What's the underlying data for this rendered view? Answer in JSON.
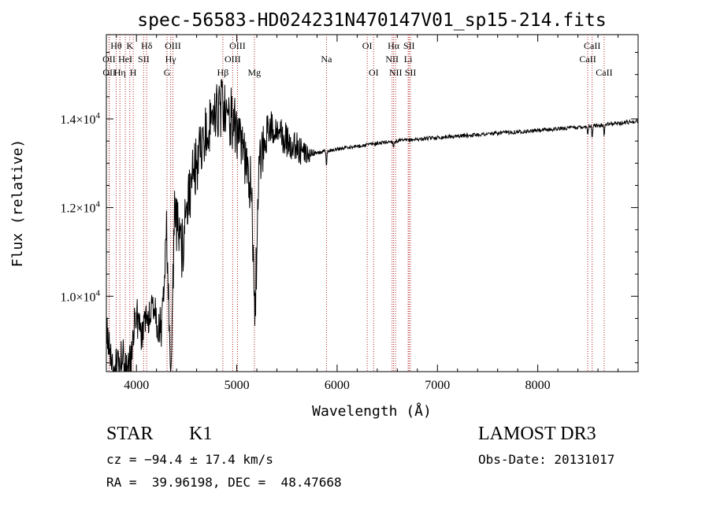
{
  "chart_data": {
    "type": "line",
    "title": "spec-56583-HD024231N470147V01_sp15-214.fits",
    "xlabel": "Wavelength (Å)",
    "ylabel": "Flux (relative)",
    "xlim": [
      3700,
      9000
    ],
    "ylim": [
      8300,
      15900
    ],
    "x_ticks": [
      {
        "value": 4000,
        "label": "4000"
      },
      {
        "value": 5000,
        "label": "5000"
      },
      {
        "value": 6000,
        "label": "6000"
      },
      {
        "value": 7000,
        "label": "7000"
      },
      {
        "value": 8000,
        "label": "8000"
      }
    ],
    "x_minor_step": 200,
    "y_ticks": [
      {
        "value": 10000,
        "mantissa": "1.0",
        "exponent": "4"
      },
      {
        "value": 12000,
        "mantissa": "1.2",
        "exponent": "4"
      },
      {
        "value": 14000,
        "mantissa": "1.4",
        "exponent": "4"
      }
    ],
    "y_minor_step": 500,
    "lines": [
      {
        "name": "Hθ",
        "x": 3798,
        "row": 0
      },
      {
        "name": "OII",
        "x": 3727,
        "row": 1
      },
      {
        "name": "OII",
        "x": 3729,
        "row": 2
      },
      {
        "name": "HeI",
        "x": 3889,
        "row": 1
      },
      {
        "name": "Hη",
        "x": 3835,
        "row": 2
      },
      {
        "name": "K",
        "x": 3934,
        "row": 0
      },
      {
        "name": "H",
        "x": 3968,
        "row": 2
      },
      {
        "name": "Hδ",
        "x": 4102,
        "row": 0
      },
      {
        "name": "SII",
        "x": 4072,
        "row": 1
      },
      {
        "name": "OIII",
        "x": 4363,
        "row": 0
      },
      {
        "name": "Hγ",
        "x": 4341,
        "row": 1
      },
      {
        "name": "G",
        "x": 4305,
        "row": 2
      },
      {
        "name": "OIII",
        "x": 5007,
        "row": 0
      },
      {
        "name": "OIII",
        "x": 4959,
        "row": 1
      },
      {
        "name": "Hβ",
        "x": 4861,
        "row": 2
      },
      {
        "name": "Mg",
        "x": 5175,
        "row": 2
      },
      {
        "name": "Na",
        "x": 5894,
        "row": 1
      },
      {
        "name": "OI",
        "x": 6300,
        "row": 0
      },
      {
        "name": "OI",
        "x": 6364,
        "row": 2
      },
      {
        "name": "Hα",
        "x": 6563,
        "row": 0
      },
      {
        "name": "SII",
        "x": 6717,
        "row": 0
      },
      {
        "name": "NII",
        "x": 6548,
        "row": 1
      },
      {
        "name": "Li",
        "x": 6708,
        "row": 1
      },
      {
        "name": "NII",
        "x": 6583,
        "row": 2
      },
      {
        "name": "SII",
        "x": 6731,
        "row": 2
      },
      {
        "name": "CaII",
        "x": 8542,
        "row": 0
      },
      {
        "name": "CaII",
        "x": 8498,
        "row": 1
      },
      {
        "name": "CaII",
        "x": 8662,
        "row": 2
      }
    ],
    "spectrum_anchors": [
      [
        3700,
        9400
      ],
      [
        3760,
        8300
      ],
      [
        3800,
        8400
      ],
      [
        3860,
        8650
      ],
      [
        3900,
        8400
      ],
      [
        3950,
        8500
      ],
      [
        3990,
        9700
      ],
      [
        4050,
        9000
      ],
      [
        4150,
        9800
      ],
      [
        4250,
        9200
      ],
      [
        4300,
        11500
      ],
      [
        4340,
        8400
      ],
      [
        4380,
        11800
      ],
      [
        4450,
        11000
      ],
      [
        4550,
        12600
      ],
      [
        4650,
        13300
      ],
      [
        4750,
        14000
      ],
      [
        4850,
        14200
      ],
      [
        4950,
        14000
      ],
      [
        5050,
        13300
      ],
      [
        5150,
        12500
      ],
      [
        5180,
        9300
      ],
      [
        5220,
        13000
      ],
      [
        5300,
        13700
      ],
      [
        5400,
        13800
      ],
      [
        5500,
        13500
      ],
      [
        5600,
        13300
      ],
      [
        5700,
        13200
      ],
      [
        5800,
        13230
      ],
      [
        6000,
        13320
      ],
      [
        6500,
        13480
      ],
      [
        7000,
        13580
      ],
      [
        7500,
        13660
      ],
      [
        8000,
        13740
      ],
      [
        8500,
        13830
      ],
      [
        9000,
        13950
      ]
    ],
    "noise_profile": [
      [
        3700,
        400
      ],
      [
        4300,
        500
      ],
      [
        4400,
        700
      ],
      [
        5200,
        700
      ],
      [
        5300,
        450
      ],
      [
        5600,
        400
      ],
      [
        5750,
        120
      ],
      [
        5800,
        40
      ],
      [
        9000,
        45
      ]
    ],
    "absorption_features": [
      {
        "x": 5175,
        "depth": 220
      },
      {
        "x": 5894,
        "depth": 300
      },
      {
        "x": 6563,
        "depth": 120
      },
      {
        "x": 8498,
        "depth": 150
      },
      {
        "x": 8542,
        "depth": 300
      },
      {
        "x": 8662,
        "depth": 250
      }
    ]
  },
  "info": {
    "object_class": "STAR",
    "subclass": "K1",
    "survey": "LAMOST DR3",
    "redshift": "cz = −94.4 ± 17.4 km/s",
    "obs_date": "Obs-Date: 20131017",
    "coords": "RA =  39.96198, DEC =  48.47668"
  },
  "colors": {
    "spectrum": "#000000",
    "line_markers": "#b22222",
    "axes": "#000000",
    "background": "#ffffff"
  }
}
